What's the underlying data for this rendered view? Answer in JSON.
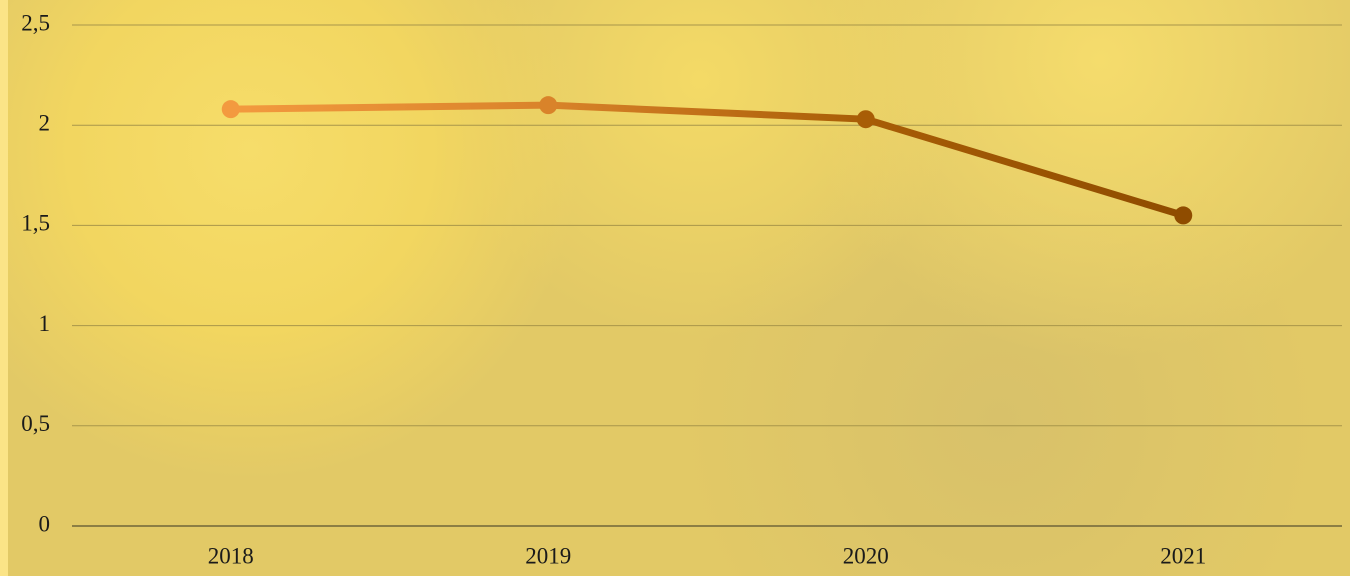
{
  "chart_data": {
    "type": "line",
    "categories": [
      "2018",
      "2019",
      "2020",
      "2021"
    ],
    "series": [
      {
        "values": [
          2.08,
          2.1,
          2.03,
          1.55
        ],
        "colors": [
          "#f39a3f",
          "#d9832a",
          "#a85d06",
          "#8f4c00"
        ]
      }
    ],
    "ylim": [
      0,
      2.5
    ],
    "yticks": [
      0,
      {
        "value": 0.5,
        "label": "0,5"
      },
      1,
      {
        "value": 1.5,
        "label": "1,5"
      },
      2,
      {
        "value": 2.5,
        "label": "2,5"
      }
    ],
    "grid": true
  }
}
